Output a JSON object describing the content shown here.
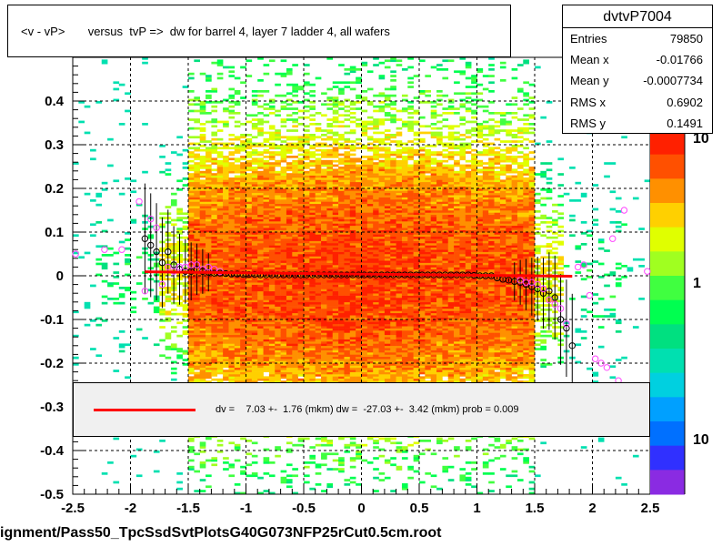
{
  "chart_data": {
    "type": "scatter",
    "title": "<v - vP>       versus  tvP =>  dw for barrel 4, layer 7 ladder 4, all wafers",
    "xlim": [
      -2.5,
      2.5
    ],
    "ylim": [
      -0.5,
      0.5
    ],
    "x_ticks": [
      "-2.5",
      "-2",
      "-1.5",
      "-1",
      "-0.5",
      "0",
      "0.5",
      "1",
      "1.5",
      "2",
      "2.5"
    ],
    "y_ticks": [
      "-0.5",
      "-0.4",
      "-0.3",
      "-0.2",
      "-0.1",
      "0",
      "0.1",
      "0.2",
      "0.3",
      "0.4"
    ],
    "z_ticks": [
      "10",
      "1",
      "10"
    ],
    "grid": true,
    "black_profile": {
      "x": [
        -1.875,
        -1.825,
        -1.775,
        -1.725,
        -1.675,
        -1.625,
        -1.575,
        -1.525,
        -1.475,
        -1.425,
        -1.375,
        -1.325,
        -1.275,
        -1.225,
        -1.175,
        -1.125,
        -1.075,
        -1.025,
        -0.975,
        -0.925,
        -0.875,
        -0.825,
        -0.775,
        -0.725,
        -0.675,
        -0.625,
        -0.575,
        -0.525,
        -0.475,
        -0.425,
        -0.375,
        -0.325,
        -0.275,
        -0.225,
        -0.175,
        -0.125,
        -0.075,
        -0.025,
        0.025,
        0.075,
        0.125,
        0.175,
        0.225,
        0.275,
        0.325,
        0.375,
        0.425,
        0.475,
        0.525,
        0.575,
        0.625,
        0.675,
        0.725,
        0.775,
        0.825,
        0.875,
        0.925,
        0.975,
        1.025,
        1.075,
        1.125,
        1.175,
        1.225,
        1.275,
        1.325,
        1.375,
        1.425,
        1.475,
        1.525,
        1.575,
        1.625,
        1.675,
        1.725,
        1.775,
        1.825
      ],
      "y": [
        0.085,
        0.07,
        0.055,
        0.03,
        0.055,
        0.025,
        0.015,
        0.01,
        0.01,
        0.015,
        0.01,
        0.008,
        0.006,
        0.006,
        0.005,
        0.004,
        0.004,
        0.003,
        0.003,
        0.003,
        0.002,
        0.002,
        0.002,
        0.002,
        0.002,
        0.002,
        0.002,
        0.002,
        0.002,
        0.002,
        0.002,
        0.002,
        0.002,
        0.002,
        0.002,
        0.002,
        0.002,
        0.002,
        0.002,
        0.002,
        0.002,
        0.002,
        0.002,
        0.002,
        0.002,
        0.002,
        0.002,
        0.002,
        0.002,
        0.002,
        0.002,
        0.002,
        0.002,
        0.002,
        0.002,
        0.002,
        0.002,
        0.001,
        0.0,
        0.0,
        0.0,
        -0.005,
        -0.008,
        -0.01,
        -0.013,
        -0.015,
        -0.02,
        -0.025,
        -0.03,
        -0.04,
        -0.035,
        -0.05,
        -0.1,
        -0.12,
        -0.16
      ]
    },
    "pink_profile": {
      "x": [
        -2.475,
        -2.225,
        -2.075,
        -1.925,
        -1.875,
        -1.825,
        -1.775,
        -1.725,
        -1.675,
        -1.625,
        -1.575,
        -1.525,
        -1.475,
        -1.425,
        -1.375,
        -1.325,
        -1.275,
        -1.225,
        1.375,
        1.425,
        1.475,
        1.525,
        1.575,
        1.625,
        1.675,
        1.725,
        1.775,
        1.875,
        1.925,
        1.975,
        2.025,
        2.075,
        2.125,
        2.175,
        2.225,
        2.275,
        2.475
      ],
      "y": [
        0.05,
        0.06,
        0.06,
        0.17,
        -0.035,
        0.13,
        0.11,
        -0.02,
        0.02,
        0.01,
        0.02,
        0.02,
        0.025,
        0.025,
        0.015,
        0.02,
        0.015,
        0.01,
        -0.01,
        -0.015,
        -0.015,
        -0.02,
        -0.03,
        -0.055,
        -0.065,
        -0.075,
        -0.11,
        0.02,
        0.025,
        -0.045,
        -0.19,
        -0.2,
        -0.21,
        0.085,
        -0.24,
        0.15,
        0.01
      ]
    },
    "fit": {
      "x1": -1.875,
      "x2": 1.825,
      "y1": 0.009,
      "y2": -0.001
    }
  },
  "stats": {
    "title": "dvtvP7004",
    "rows": [
      {
        "label": "Entries",
        "value": "79850"
      },
      {
        "label": "Mean x",
        "value": "-0.01766"
      },
      {
        "label": "Mean y",
        "value": "-0.0007734"
      },
      {
        "label": "RMS x",
        "value": "0.6902"
      },
      {
        "label": "RMS y",
        "value": "0.1491"
      }
    ]
  },
  "fit_box": {
    "text": "dv =    7.03 +-  1.76 (mkm) dw =  -27.03 +-  3.42 (mkm) prob = 0.009"
  },
  "footer": "ignment/Pass50_TpcSsdSvtPlotsG40G073NFP25rCut0.5cm.root",
  "colors": {
    "fit_line": "#ff0000",
    "pink_marker": "#ff44ff",
    "black_marker": "#000000",
    "grid": "#000000"
  }
}
